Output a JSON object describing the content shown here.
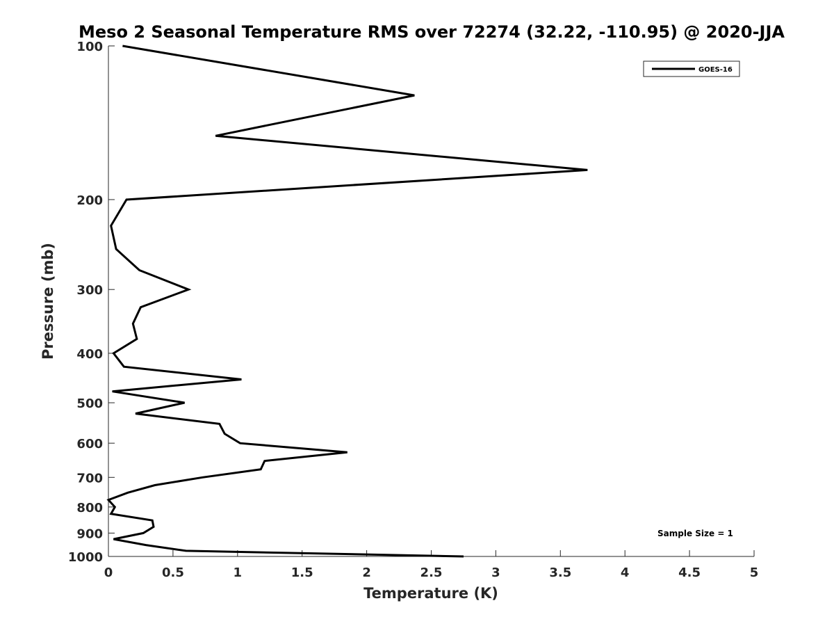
{
  "chart_data": {
    "type": "line",
    "title": "Meso 2 Seasonal Temperature RMS over 72274 (32.22, -110.95) @ 2020-JJA",
    "xlabel": "Temperature (K)",
    "ylabel": "Pressure (mb)",
    "xlim": [
      0,
      5
    ],
    "ylim": [
      100,
      1000
    ],
    "y_scale": "log",
    "y_reversed": true,
    "x_ticks": [
      0,
      0.5,
      1,
      1.5,
      2,
      2.5,
      3,
      3.5,
      4,
      4.5,
      5
    ],
    "x_tick_labels": [
      "0",
      "0.5",
      "1",
      "1.5",
      "2",
      "2.5",
      "3",
      "3.5",
      "4",
      "4.5",
      "5"
    ],
    "y_ticks": [
      100,
      200,
      300,
      400,
      500,
      600,
      700,
      800,
      900,
      1000
    ],
    "y_tick_labels": [
      "100",
      "200",
      "300",
      "400",
      "500",
      "600",
      "700",
      "800",
      "900",
      "1000"
    ],
    "grid": false,
    "legend_position": "top-right",
    "annotation": "Sample Size = 1",
    "series": [
      {
        "name": "GOES-16",
        "color": "#000000",
        "x": [
          0.11,
          2.37,
          0.83,
          3.71,
          0.14,
          0.02,
          0.06,
          0.24,
          0.62,
          0.25,
          0.19,
          0.22,
          0.04,
          0.12,
          1.03,
          0.03,
          0.59,
          0.21,
          0.86,
          0.9,
          1.02,
          1.85,
          1.21,
          1.18,
          0.73,
          0.36,
          0.15,
          0.0,
          0.05,
          0.02,
          0.34,
          0.35,
          0.27,
          0.04,
          0.29,
          0.6,
          2.75
        ],
        "y": [
          100,
          125,
          150,
          175,
          200,
          225,
          250,
          275,
          300,
          325,
          350,
          375,
          400,
          425,
          450,
          475,
          500,
          525,
          550,
          575,
          600,
          625,
          650,
          675,
          700,
          725,
          750,
          775,
          800,
          825,
          850,
          875,
          900,
          925,
          950,
          975,
          1000
        ]
      }
    ]
  }
}
